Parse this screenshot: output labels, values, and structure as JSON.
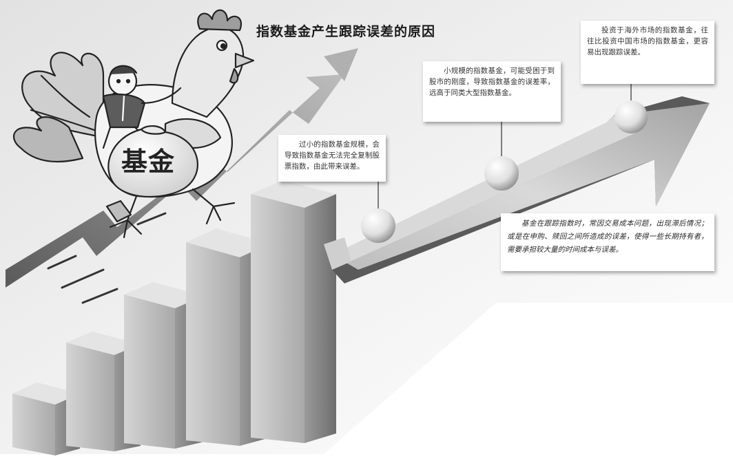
{
  "title": "指数基金产生跟踪误差的原因",
  "mascot_label": "基金",
  "callouts": [
    {
      "text": "过小的指数基金规模，会导致指数基金无法完全复制股票指数，由此带来误差。"
    },
    {
      "text": "小规模的指数基金，可能受困于到股市的刚度，导致指数基金的误差率，远高于同类大型指数基金。"
    },
    {
      "text": "投资于海外市场的指数基金，往往比投资中国市场的指数基金，更容易出现跟踪误差。"
    },
    {
      "text": "基金在跟踪指数时，常因交易成本问题，出现滞后情况；或是在申购、赎回之间所造成的误差，使得一些长期持有者，需要承担较大量的时间成本与误差。"
    }
  ],
  "palette": {
    "bar_front": "#bdbdbd",
    "bar_side": "#8c8c8c",
    "bar_top": "#e4e4e4",
    "arrow_face": "#c9c9c9",
    "arrow_shadow": "#5a5a5a",
    "background_fade": "#dcdcdc"
  },
  "icons": [
    "rooster-mascot-icon",
    "money-bag-icon",
    "pearl-marker-icon"
  ]
}
